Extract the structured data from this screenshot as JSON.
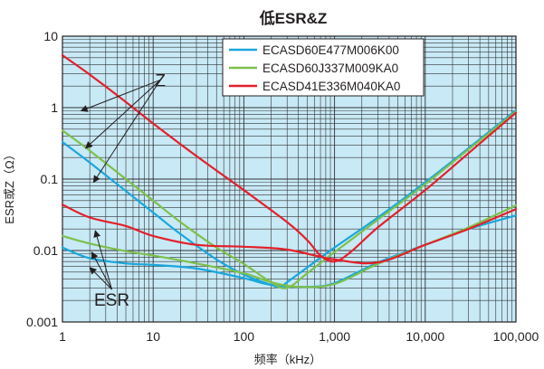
{
  "chart_data": {
    "type": "line",
    "title": "低ESR&Z",
    "xlabel": "频率（kHz）",
    "ylabel": "ESR或Z（Ω）",
    "x_scale": "log",
    "y_scale": "log",
    "xlim": [
      1,
      100000
    ],
    "ylim": [
      0.001,
      10
    ],
    "x_ticks": [
      1,
      10,
      100,
      1000,
      10000,
      100000
    ],
    "x_tick_labels": [
      "1",
      "10",
      "100",
      "1,000",
      "10,000",
      "100,000"
    ],
    "y_ticks": [
      0.001,
      0.01,
      0.1,
      1,
      10
    ],
    "y_tick_labels": [
      "0.001",
      "0.01",
      "0.1",
      "1",
      "10"
    ],
    "grid": true,
    "plot_background": "#c8e9f6",
    "legend_position": "top-right",
    "annotations": [
      {
        "text": "Z",
        "x": 12,
        "y": 2.3,
        "pointers": [
          [
            1.6,
            0.9
          ],
          [
            1.8,
            0.27
          ],
          [
            2.2,
            0.09
          ]
        ]
      },
      {
        "text": "ESR",
        "x": 3.5,
        "y": 0.0019,
        "pointers": [
          [
            2.3,
            0.019
          ],
          [
            2.1,
            0.0095
          ],
          [
            2.0,
            0.0058
          ]
        ]
      }
    ],
    "series": [
      {
        "name": "ECASD60E477M006K00",
        "color": "#1aa7dc",
        "impedance": [
          [
            1,
            0.33
          ],
          [
            2,
            0.17
          ],
          [
            5,
            0.068
          ],
          [
            10,
            0.034
          ],
          [
            20,
            0.017
          ],
          [
            50,
            0.0075
          ],
          [
            100,
            0.0046
          ],
          [
            200,
            0.0033
          ],
          [
            250,
            0.0031
          ],
          [
            300,
            0.0036
          ],
          [
            500,
            0.0058
          ],
          [
            1000,
            0.011
          ],
          [
            3000,
            0.029
          ],
          [
            10000,
            0.09
          ],
          [
            30000,
            0.27
          ],
          [
            100000,
            0.92
          ]
        ],
        "esr": [
          [
            1,
            0.011
          ],
          [
            2,
            0.0078
          ],
          [
            5,
            0.0066
          ],
          [
            10,
            0.0063
          ],
          [
            30,
            0.0056
          ],
          [
            100,
            0.0041
          ],
          [
            200,
            0.0033
          ],
          [
            500,
            0.0031
          ],
          [
            1000,
            0.0035
          ],
          [
            3000,
            0.0068
          ],
          [
            10000,
            0.012
          ],
          [
            30000,
            0.02
          ],
          [
            100000,
            0.031
          ]
        ]
      },
      {
        "name": "ECASD60J337M009KA0",
        "color": "#7dc04c",
        "impedance": [
          [
            1,
            0.48
          ],
          [
            2,
            0.25
          ],
          [
            5,
            0.1
          ],
          [
            10,
            0.05
          ],
          [
            20,
            0.025
          ],
          [
            50,
            0.011
          ],
          [
            100,
            0.0065
          ],
          [
            200,
            0.0036
          ],
          [
            300,
            0.003
          ],
          [
            500,
            0.0048
          ],
          [
            1000,
            0.0095
          ],
          [
            3000,
            0.027
          ],
          [
            10000,
            0.085
          ],
          [
            30000,
            0.26
          ],
          [
            100000,
            0.88
          ]
        ],
        "esr": [
          [
            1,
            0.016
          ],
          [
            2,
            0.0125
          ],
          [
            5,
            0.0098
          ],
          [
            10,
            0.0085
          ],
          [
            30,
            0.0066
          ],
          [
            100,
            0.0048
          ],
          [
            200,
            0.0036
          ],
          [
            400,
            0.0031
          ],
          [
            1000,
            0.0034
          ],
          [
            3000,
            0.0065
          ],
          [
            10000,
            0.012
          ],
          [
            30000,
            0.021
          ],
          [
            100000,
            0.043
          ]
        ]
      },
      {
        "name": "ECASD41E336M040KA0",
        "color": "#e3202a",
        "impedance": [
          [
            1,
            5.4
          ],
          [
            2,
            2.9
          ],
          [
            5,
            1.2
          ],
          [
            10,
            0.6
          ],
          [
            30,
            0.21
          ],
          [
            100,
            0.07
          ],
          [
            300,
            0.025
          ],
          [
            500,
            0.014
          ],
          [
            700,
            0.0085
          ],
          [
            1000,
            0.007
          ],
          [
            1500,
            0.0095
          ],
          [
            3000,
            0.021
          ],
          [
            10000,
            0.07
          ],
          [
            30000,
            0.23
          ],
          [
            100000,
            0.85
          ]
        ],
        "esr": [
          [
            1,
            0.044
          ],
          [
            2,
            0.029
          ],
          [
            5,
            0.022
          ],
          [
            10,
            0.016
          ],
          [
            30,
            0.012
          ],
          [
            100,
            0.0113
          ],
          [
            300,
            0.0103
          ],
          [
            1000,
            0.0075
          ],
          [
            3000,
            0.0068
          ],
          [
            10000,
            0.012
          ],
          [
            30000,
            0.02
          ],
          [
            100000,
            0.038
          ]
        ]
      }
    ]
  }
}
